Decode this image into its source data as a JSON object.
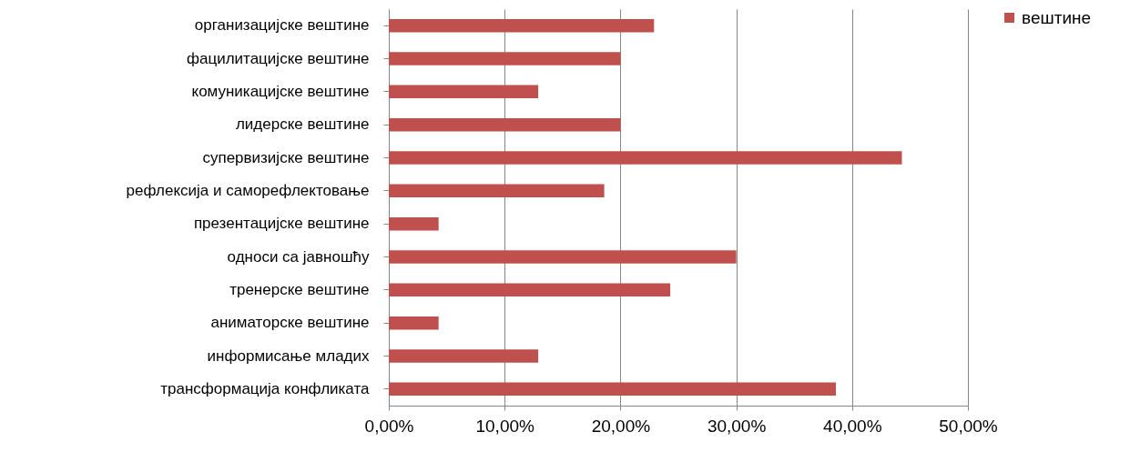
{
  "chart_data": {
    "type": "bar",
    "orientation": "horizontal",
    "categories": [
      "организацијске вештине",
      "фацилитацијске вештине",
      "комуникацијске вештине",
      "лидерске вештине",
      "супервизијске вештине",
      "рефлексија и саморефлектовање",
      "презентацијске вештине",
      "односи са јавношћу",
      "тренерске вештине",
      "аниматорске вештине",
      "информисање младих",
      "трансформација конфликата"
    ],
    "series": [
      {
        "name": "вештине",
        "color": "#c0504d",
        "values": [
          22.9,
          20.0,
          12.9,
          20.0,
          44.3,
          18.6,
          4.3,
          30.0,
          24.3,
          4.3,
          12.9,
          38.6
        ]
      }
    ],
    "xlim": [
      0,
      50
    ],
    "xticks": [
      {
        "value": 0,
        "label": "0,00%"
      },
      {
        "value": 10,
        "label": "10,00%"
      },
      {
        "value": 20,
        "label": "20,00%"
      },
      {
        "value": 30,
        "label": "30,00%"
      },
      {
        "value": 40,
        "label": "40,00%"
      },
      {
        "value": 50,
        "label": "50,00%"
      }
    ],
    "grid": "x",
    "legend": "right"
  }
}
